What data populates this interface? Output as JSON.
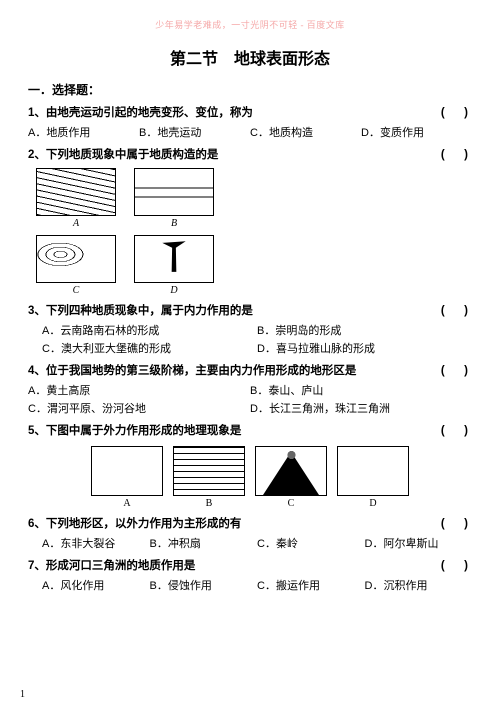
{
  "watermark": "少年易学老难成，一寸光阴不可轻 - 百度文库",
  "title": "第二节　地球表面形态",
  "section1": "一．选择题：",
  "q1": {
    "text": "1、由地壳运动引起的地壳变形、变位，称为",
    "opts": {
      "a": "A．地质作用",
      "b": "B．地壳运动",
      "c": "C．地质构造",
      "d": "D．变质作用"
    }
  },
  "q2": {
    "text": "2、下列地质现象中属于地质构造的是",
    "caps": {
      "a": "A",
      "b": "B",
      "c": "C",
      "d": "D"
    }
  },
  "q3": {
    "text": "3、下列四种地质现象中，属于内力作用的是",
    "opts": {
      "a": "A．云南路南石林的形成",
      "b": "B．崇明岛的形成",
      "c": "C．澳大利亚大堡礁的形成",
      "d": "D．喜马拉雅山脉的形成"
    }
  },
  "q4": {
    "text": "4、位于我国地势的第三级阶梯，主要由内力作用形成的地形区是",
    "opts": {
      "a": "A．黄土高原",
      "b": "B．泰山、庐山",
      "c": "C．渭河平原、汾河谷地",
      "d": "D．长江三角洲，珠江三角洲"
    }
  },
  "q5": {
    "text": "5、下图中属于外力作用形成的地理现象是",
    "caps": {
      "a": "A",
      "b": "B",
      "c": "C",
      "d": "D"
    }
  },
  "q6": {
    "text": "6、下列地形区，以外力作用为主形成的有",
    "opts": {
      "a": "A．东非大裂谷",
      "b": "B．冲积扇",
      "c": "C．秦岭",
      "d": "D．阿尔卑斯山"
    }
  },
  "q7": {
    "text": "7、形成河口三角洲的地质作用是",
    "opts": {
      "a": "A．风化作用",
      "b": "B．侵蚀作用",
      "c": "C．搬运作用",
      "d": "D．沉积作用"
    }
  },
  "paren": "(　)",
  "pageNum": "1"
}
